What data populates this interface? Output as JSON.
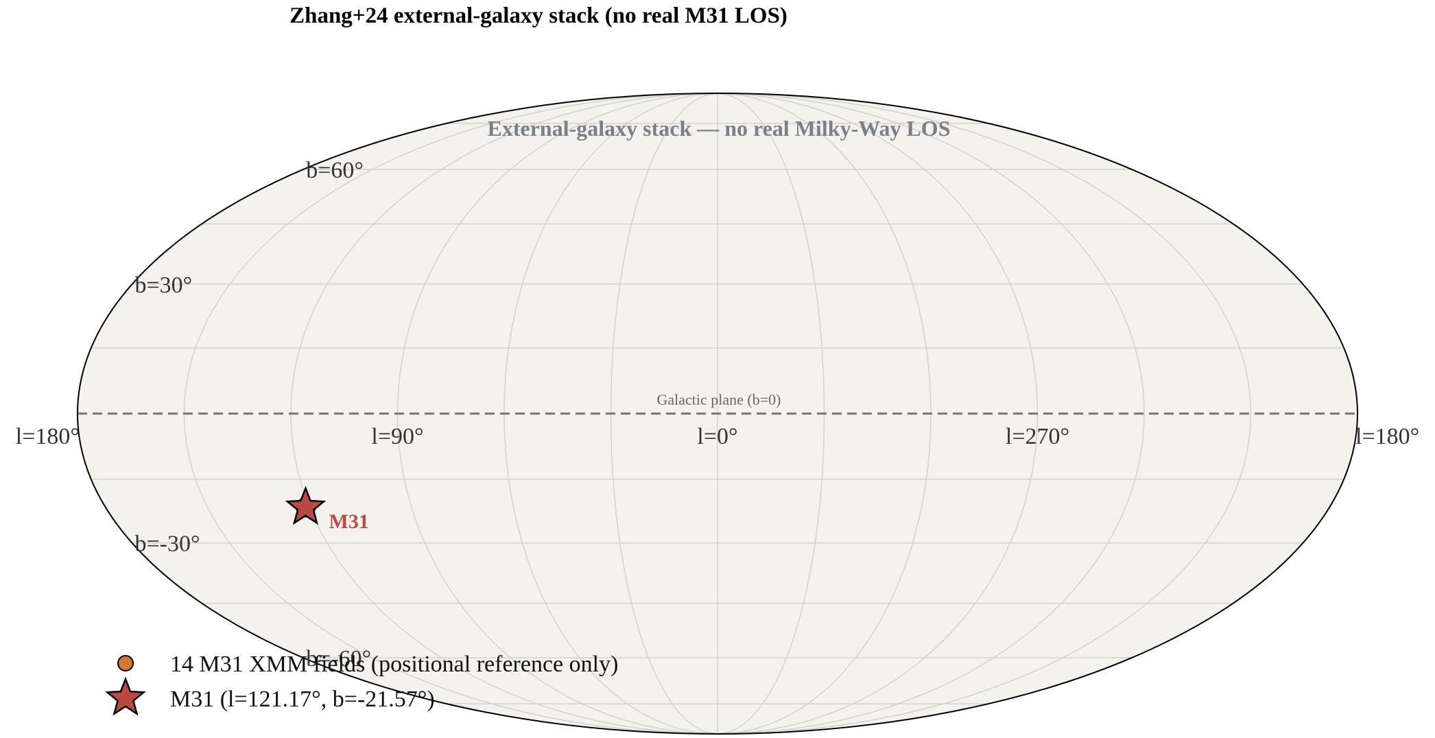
{
  "title": "Zhang+24 external-galaxy stack (no real M31 LOS)",
  "subtitle": "External-galaxy stack — no real Milky-Way LOS",
  "colors": {
    "background": "#f5f2ed",
    "grid": "#d3d0cb",
    "outline": "#000000",
    "plane": "#7a716c",
    "subtitle": "#7b7f8a",
    "m31": "#b84a42",
    "fields": "#d4772f"
  },
  "chart_data": {
    "type": "scatter",
    "projection": "Mollweide, Galactic coordinates, l increasing to the left",
    "grid": true,
    "longitude_labels": [
      {
        "l": 180,
        "text": "l=180°",
        "side": "left"
      },
      {
        "l": 90,
        "text": "l=90°"
      },
      {
        "l": 0,
        "text": "l=0°"
      },
      {
        "l": 270,
        "text": "l=270°"
      },
      {
        "l": 180,
        "text": "l=180°",
        "side": "right"
      }
    ],
    "latitude_labels": [
      {
        "b": 60,
        "text": "b=60°"
      },
      {
        "b": 30,
        "text": "b=30°"
      },
      {
        "b": -30,
        "text": "b=-30°"
      },
      {
        "b": -60,
        "text": "b=-60°"
      }
    ],
    "galactic_plane": {
      "b": 0,
      "label": "Galactic plane (b=0)"
    },
    "fields": {
      "name": "14 M31 XMM fields (positional reference only)",
      "points": [
        {
          "l": 121.0,
          "b": -21.4
        },
        {
          "l": 121.2,
          "b": -21.6
        },
        {
          "l": 121.4,
          "b": -21.8
        },
        {
          "l": 120.9,
          "b": -21.9
        },
        {
          "l": 121.5,
          "b": -21.3
        },
        {
          "l": 121.1,
          "b": -21.2
        },
        {
          "l": 120.8,
          "b": -21.5
        },
        {
          "l": 121.3,
          "b": -22.0
        },
        {
          "l": 121.6,
          "b": -21.6
        },
        {
          "l": 121.0,
          "b": -21.7
        },
        {
          "l": 121.2,
          "b": -21.4
        },
        {
          "l": 120.7,
          "b": -21.7
        },
        {
          "l": 121.4,
          "b": -21.5
        },
        {
          "l": 121.1,
          "b": -21.9
        }
      ]
    },
    "m31": {
      "name": "M31 (l=121.17°, b=-21.57°)",
      "label": "M31",
      "l": 121.17,
      "b": -21.57
    },
    "legend": {
      "placement": "lower-left"
    }
  }
}
